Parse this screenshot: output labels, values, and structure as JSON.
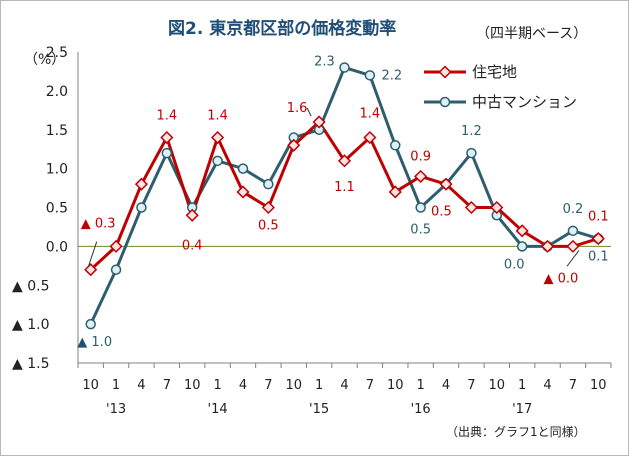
{
  "title": "図2. 東京都区部の価格変動率",
  "unit_note": "（四半期ベース）",
  "y_unit": "（%）",
  "source": "（出典：グラフ1と同様）",
  "colors": {
    "residential": "#c00000",
    "condo": "#2e5e6e",
    "zero_line": "#6b8e23",
    "neg_marker_residential": "#c00000",
    "neg_marker_condo": "#1f4e79"
  },
  "chart_data": {
    "type": "line",
    "title": "図2. 東京都区部の価格変動率",
    "ylabel": "（%）",
    "ylim": [
      -1.5,
      2.5
    ],
    "y_ticks": [
      2.5,
      2.0,
      1.5,
      1.0,
      0.5,
      0.0,
      -0.5,
      -1.0,
      -1.5
    ],
    "y_tick_labels": [
      "2.5",
      "2.0",
      "1.5",
      "1.0",
      "0.5",
      "0.0",
      "▲ 0.5",
      "▲ 1.0",
      "▲ 1.5"
    ],
    "categories": [
      "10",
      "1",
      "4",
      "7",
      "10",
      "1",
      "4",
      "7",
      "10",
      "1",
      "4",
      "7",
      "10",
      "1",
      "4",
      "7",
      "10",
      "1",
      "4",
      "7",
      "10"
    ],
    "year_labels": [
      {
        "label": "'13",
        "at_index": 1
      },
      {
        "label": "'14",
        "at_index": 5
      },
      {
        "label": "'15",
        "at_index": 9
      },
      {
        "label": "'16",
        "at_index": 13
      },
      {
        "label": "'17",
        "at_index": 17
      }
    ],
    "legend_position": "top-right",
    "grid": false,
    "series": [
      {
        "name": "住宅地",
        "marker": "diamond",
        "values": [
          -0.3,
          0.0,
          0.8,
          1.4,
          0.4,
          1.4,
          0.7,
          0.5,
          1.3,
          1.6,
          1.1,
          1.4,
          0.7,
          0.9,
          0.8,
          0.5,
          0.5,
          0.2,
          0.0,
          0.0,
          0.1
        ]
      },
      {
        "name": "中古マンション",
        "marker": "circle",
        "values": [
          -1.0,
          -0.3,
          0.5,
          1.2,
          0.5,
          1.1,
          1.0,
          0.8,
          1.4,
          1.5,
          2.3,
          2.2,
          1.3,
          0.5,
          0.8,
          1.2,
          0.4,
          0.0,
          0.0,
          0.2,
          0.1
        ]
      }
    ],
    "data_labels": [
      {
        "series": 0,
        "index": 0,
        "text": "▲ 0.3"
      },
      {
        "series": 0,
        "index": 3,
        "text": "1.4"
      },
      {
        "series": 0,
        "index": 4,
        "text": "0.4"
      },
      {
        "series": 0,
        "index": 5,
        "text": "1.4"
      },
      {
        "series": 0,
        "index": 7,
        "text": "0.5"
      },
      {
        "series": 0,
        "index": 9,
        "text": "1.6"
      },
      {
        "series": 0,
        "index": 10,
        "text": "1.1"
      },
      {
        "series": 0,
        "index": 11,
        "text": "1.4"
      },
      {
        "series": 0,
        "index": 13,
        "text": "0.9"
      },
      {
        "series": 0,
        "index": 15,
        "text": "0.5"
      },
      {
        "series": 0,
        "index": 19,
        "text": "▲ 0.0"
      },
      {
        "series": 0,
        "index": 20,
        "text": "0.1"
      },
      {
        "series": 1,
        "index": 0,
        "text": "▲ 1.0"
      },
      {
        "series": 1,
        "index": 10,
        "text": "2.3"
      },
      {
        "series": 1,
        "index": 11,
        "text": "2.2"
      },
      {
        "series": 1,
        "index": 13,
        "text": "0.5"
      },
      {
        "series": 1,
        "index": 15,
        "text": "1.2"
      },
      {
        "series": 1,
        "index": 17,
        "text": "0.0"
      },
      {
        "series": 1,
        "index": 19,
        "text": "0.2"
      },
      {
        "series": 1,
        "index": 20,
        "text": "0.1"
      }
    ]
  }
}
